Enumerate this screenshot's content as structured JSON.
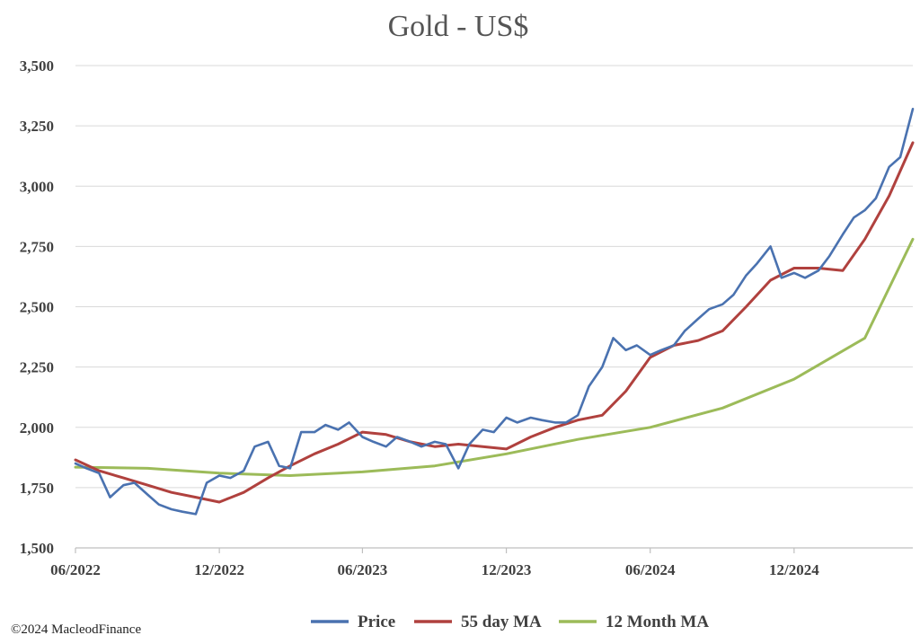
{
  "chart_data": {
    "type": "line",
    "title": "Gold - US$",
    "xlabel": "",
    "ylabel": "",
    "ylim": [
      1500,
      3500
    ],
    "y_ticks": [
      1500,
      1750,
      2000,
      2250,
      2500,
      2750,
      3000,
      3250,
      3500
    ],
    "y_tick_labels": [
      "1,500",
      "1,750",
      "2,000",
      "2,250",
      "2,500",
      "2,750",
      "3,000",
      "3,250",
      "3,500"
    ],
    "x_range": [
      "2022-06",
      "2025-05"
    ],
    "x_ticks": [
      "2022-06",
      "2022-12",
      "2023-06",
      "2023-12",
      "2024-06",
      "2024-12"
    ],
    "x_tick_labels": [
      "06/2022",
      "12/2022",
      "06/2023",
      "12/2023",
      "06/2024",
      "12/2024"
    ],
    "grid": "horizontal",
    "legend_position": "bottom",
    "series": [
      {
        "name": "Price",
        "color": "#4a72b0",
        "x": [
          "2022-06-01",
          "2022-06-15",
          "2022-07-01",
          "2022-07-15",
          "2022-08-01",
          "2022-08-15",
          "2022-09-01",
          "2022-09-15",
          "2022-10-01",
          "2022-10-15",
          "2022-11-01",
          "2022-11-15",
          "2022-12-01",
          "2022-12-15",
          "2023-01-01",
          "2023-01-15",
          "2023-02-01",
          "2023-02-15",
          "2023-03-01",
          "2023-03-15",
          "2023-04-01",
          "2023-04-15",
          "2023-05-01",
          "2023-05-15",
          "2023-06-01",
          "2023-06-15",
          "2023-07-01",
          "2023-07-15",
          "2023-08-01",
          "2023-08-15",
          "2023-09-01",
          "2023-09-15",
          "2023-10-01",
          "2023-10-15",
          "2023-11-01",
          "2023-11-15",
          "2023-12-01",
          "2023-12-15",
          "2024-01-01",
          "2024-01-15",
          "2024-02-01",
          "2024-02-15",
          "2024-03-01",
          "2024-03-15",
          "2024-04-01",
          "2024-04-15",
          "2024-05-01",
          "2024-05-15",
          "2024-06-01",
          "2024-06-15",
          "2024-07-01",
          "2024-07-15",
          "2024-08-01",
          "2024-08-15",
          "2024-09-01",
          "2024-09-15",
          "2024-10-01",
          "2024-10-15",
          "2024-11-01",
          "2024-11-15",
          "2024-12-01",
          "2024-12-15",
          "2025-01-01",
          "2025-01-15",
          "2025-02-01",
          "2025-02-15",
          "2025-03-01",
          "2025-03-15",
          "2025-04-01",
          "2025-04-15",
          "2025-05-01"
        ],
        "values": [
          1850,
          1830,
          1810,
          1710,
          1760,
          1770,
          1720,
          1680,
          1660,
          1650,
          1640,
          1770,
          1800,
          1790,
          1820,
          1920,
          1940,
          1840,
          1830,
          1980,
          1980,
          2010,
          1990,
          2020,
          1960,
          1940,
          1920,
          1960,
          1940,
          1920,
          1940,
          1930,
          1830,
          1930,
          1990,
          1980,
          2040,
          2020,
          2040,
          2030,
          2020,
          2020,
          2050,
          2170,
          2250,
          2370,
          2320,
          2340,
          2300,
          2320,
          2340,
          2400,
          2450,
          2490,
          2510,
          2550,
          2630,
          2680,
          2750,
          2620,
          2640,
          2620,
          2650,
          2710,
          2800,
          2870,
          2900,
          2950,
          3080,
          3120,
          3320
        ]
      },
      {
        "name": "55 day MA",
        "color": "#b0413e",
        "x": [
          "2022-06-01",
          "2022-07-01",
          "2022-08-01",
          "2022-09-01",
          "2022-10-01",
          "2022-11-01",
          "2022-12-01",
          "2023-01-01",
          "2023-02-01",
          "2023-03-01",
          "2023-04-01",
          "2023-05-01",
          "2023-06-01",
          "2023-07-01",
          "2023-08-01",
          "2023-09-01",
          "2023-10-01",
          "2023-11-01",
          "2023-12-01",
          "2024-01-01",
          "2024-02-01",
          "2024-03-01",
          "2024-04-01",
          "2024-05-01",
          "2024-06-01",
          "2024-07-01",
          "2024-08-01",
          "2024-09-01",
          "2024-10-01",
          "2024-11-01",
          "2024-12-01",
          "2025-01-01",
          "2025-02-01",
          "2025-03-01",
          "2025-04-01",
          "2025-05-01"
        ],
        "values": [
          1865,
          1820,
          1790,
          1760,
          1730,
          1710,
          1690,
          1730,
          1790,
          1840,
          1890,
          1930,
          1980,
          1970,
          1940,
          1920,
          1930,
          1920,
          1910,
          1960,
          2000,
          2030,
          2050,
          2150,
          2290,
          2340,
          2360,
          2400,
          2500,
          2610,
          2660,
          2660,
          2650,
          2780,
          2960,
          3180
        ]
      },
      {
        "name": "12 Month MA",
        "color": "#9cbb59",
        "x": [
          "2022-06-01",
          "2022-09-01",
          "2022-12-01",
          "2023-03-01",
          "2023-06-01",
          "2023-09-01",
          "2023-12-01",
          "2024-03-01",
          "2024-06-01",
          "2024-09-01",
          "2024-12-01",
          "2025-03-01",
          "2025-05-01"
        ],
        "values": [
          1835,
          1830,
          1810,
          1800,
          1815,
          1840,
          1890,
          1950,
          2000,
          2080,
          2200,
          2370,
          2780
        ]
      }
    ]
  },
  "legend": {
    "items": [
      {
        "label": "Price",
        "color": "#4a72b0"
      },
      {
        "label": "55 day MA",
        "color": "#b0413e"
      },
      {
        "label": "12 Month MA",
        "color": "#9cbb59"
      }
    ]
  },
  "footer": {
    "copyright": "©2024 MacleodFinance"
  }
}
